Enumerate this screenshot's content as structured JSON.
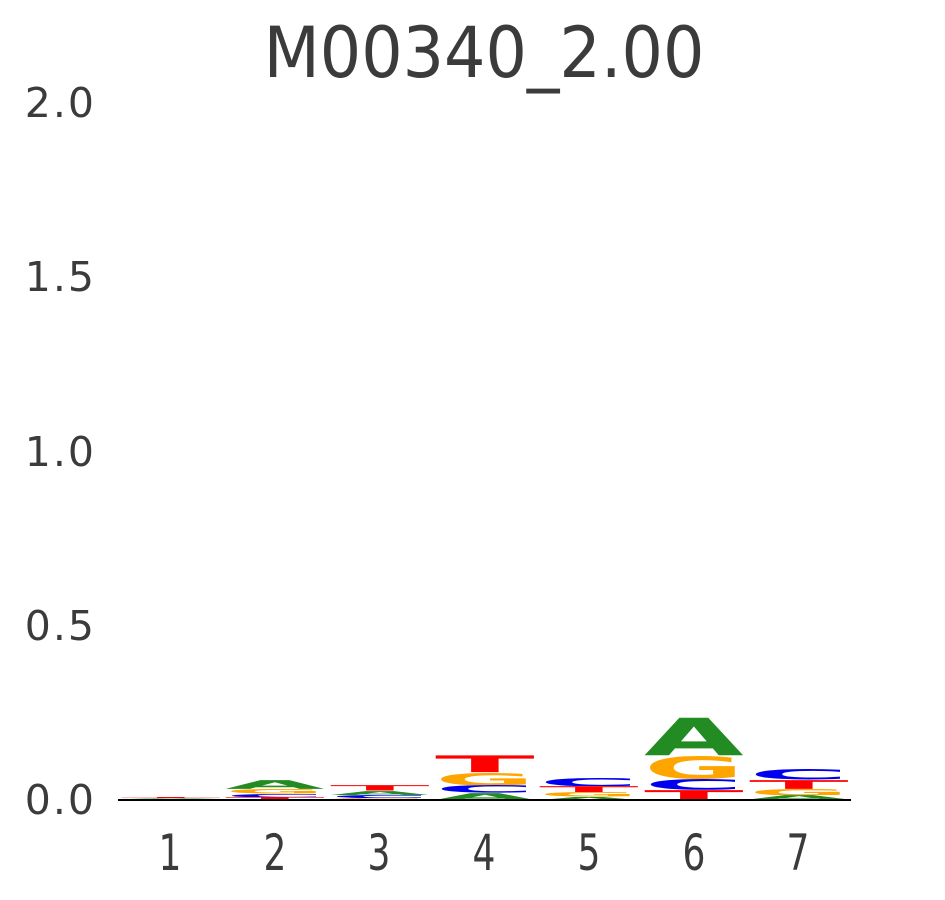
{
  "figure": {
    "background_color": "#ffffff",
    "text_color": "#3b3b3b"
  },
  "chart_data": {
    "type": "sequence_logo",
    "title": "M00340_2.00",
    "xlabel": "",
    "ylabel": "",
    "x_tick_labels": [
      "1",
      "2",
      "3",
      "4",
      "5",
      "6",
      "7"
    ],
    "y_tick_labels": [
      "0.0",
      "0.5",
      "1.0",
      "1.5",
      "2.0"
    ],
    "ylim": [
      0,
      2.0
    ],
    "grid": false,
    "legend": false,
    "letter_colors": {
      "A": "#228B22",
      "C": "#0000EE",
      "G": "#FFA500",
      "T": "#FF0000"
    },
    "stacks": [
      [
        {
          "letter": "C",
          "bits": 0.002
        },
        {
          "letter": "G",
          "bits": 0.002
        },
        {
          "letter": "A",
          "bits": 0.002
        },
        {
          "letter": "T",
          "bits": 0.003
        }
      ],
      [
        {
          "letter": "T",
          "bits": 0.008
        },
        {
          "letter": "C",
          "bits": 0.01
        },
        {
          "letter": "G",
          "bits": 0.013
        },
        {
          "letter": "A",
          "bits": 0.026
        }
      ],
      [
        {
          "letter": "G",
          "bits": 0.006
        },
        {
          "letter": "C",
          "bits": 0.009
        },
        {
          "letter": "A",
          "bits": 0.012
        },
        {
          "letter": "T",
          "bits": 0.016
        }
      ],
      [
        {
          "letter": "A",
          "bits": 0.02
        },
        {
          "letter": "C",
          "bits": 0.022
        },
        {
          "letter": "G",
          "bits": 0.036
        },
        {
          "letter": "T",
          "bits": 0.05
        }
      ],
      [
        {
          "letter": "A",
          "bits": 0.009
        },
        {
          "letter": "G",
          "bits": 0.013
        },
        {
          "letter": "T",
          "bits": 0.018
        },
        {
          "letter": "C",
          "bits": 0.024
        }
      ],
      [
        {
          "letter": "T",
          "bits": 0.029
        },
        {
          "letter": "C",
          "bits": 0.031
        },
        {
          "letter": "G",
          "bits": 0.066
        },
        {
          "letter": "A",
          "bits": 0.112
        }
      ],
      [
        {
          "letter": "A",
          "bits": 0.013
        },
        {
          "letter": "G",
          "bits": 0.019
        },
        {
          "letter": "T",
          "bits": 0.026
        },
        {
          "letter": "C",
          "bits": 0.03
        }
      ]
    ]
  }
}
